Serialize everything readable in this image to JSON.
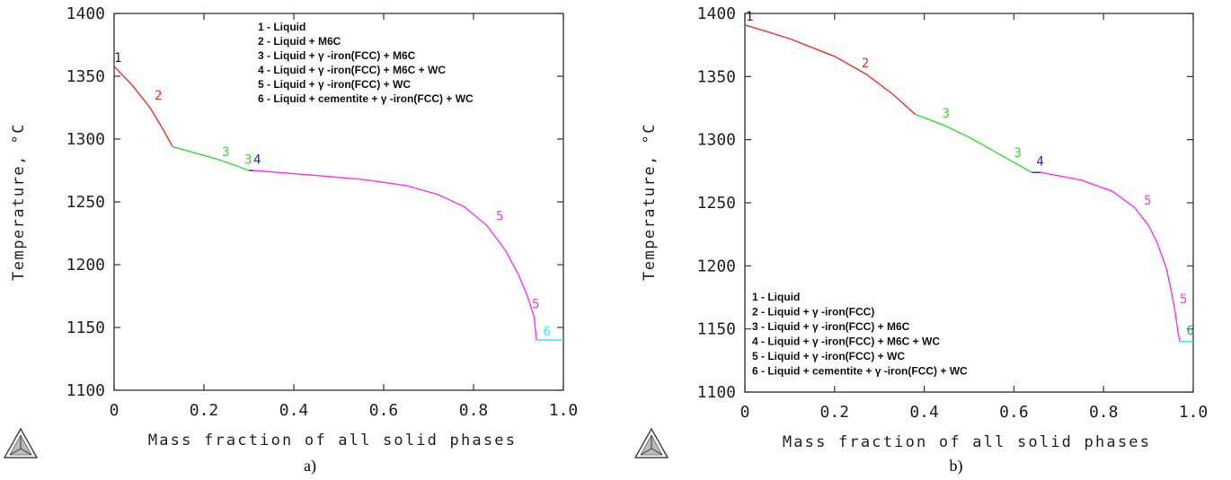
{
  "chart_data": [
    {
      "type": "line",
      "panel_label": "a)",
      "xlabel": "Mass fraction of all solid phases",
      "ylabel": "Temperature, °C",
      "xlim": [
        0,
        1.0
      ],
      "ylim": [
        1100,
        1400
      ],
      "x_ticks": [
        "0",
        "0.2",
        "0.4",
        "0.6",
        "0.8",
        "1.0"
      ],
      "y_ticks": [
        "1100",
        "1150",
        "1200",
        "1250",
        "1300",
        "1350",
        "1400"
      ],
      "grid": false,
      "legend_position": "top-right",
      "legend": [
        "1 - Liquid",
        "2 - Liquid + M6C",
        "3 - Liquid + γ -iron(FCC) + M6C",
        "4 - Liquid + γ -iron(FCC) + M6C + WC",
        "5 - Liquid + γ -iron(FCC) + WC",
        "6 - Liquid + cementite + γ -iron(FCC) + WC"
      ],
      "series": [
        {
          "name": "2",
          "color": "#ff2a2a",
          "x": [
            0.0,
            0.04,
            0.08,
            0.11,
            0.13
          ],
          "y": [
            1358,
            1343,
            1325,
            1307,
            1294
          ]
        },
        {
          "name": "3",
          "color": "#33dd33",
          "x": [
            0.13,
            0.18,
            0.23,
            0.27,
            0.3
          ],
          "y": [
            1294,
            1289,
            1284,
            1279,
            1275
          ]
        },
        {
          "name": "4",
          "color": "#2222cc",
          "x": [
            0.3,
            0.31
          ],
          "y": [
            1275,
            1275
          ]
        },
        {
          "name": "5",
          "color": "#ff33ff",
          "x": [
            0.31,
            0.45,
            0.55,
            0.65,
            0.72,
            0.78,
            0.83,
            0.87,
            0.9,
            0.92,
            0.935,
            0.94
          ],
          "y": [
            1275,
            1271,
            1268,
            1263,
            1256,
            1246,
            1231,
            1212,
            1192,
            1175,
            1158,
            1140
          ]
        },
        {
          "name": "6",
          "color": "#33eeee",
          "x": [
            0.94,
            1.0
          ],
          "y": [
            1140,
            1140
          ]
        }
      ],
      "segment_labels": [
        {
          "text": "1",
          "x": 0.0,
          "y": 1360,
          "color": "#222222"
        },
        {
          "text": "2",
          "x": 0.09,
          "y": 1330,
          "color": "#ff2a2a"
        },
        {
          "text": "3",
          "x": 0.24,
          "y": 1285,
          "color": "#33dd33"
        },
        {
          "text": "3",
          "x": 0.29,
          "y": 1279,
          "color": "#33dd33"
        },
        {
          "text": "4",
          "x": 0.31,
          "y": 1279,
          "color": "#2222cc"
        },
        {
          "text": "5",
          "x": 0.85,
          "y": 1234,
          "color": "#ff33ff"
        },
        {
          "text": "5",
          "x": 0.93,
          "y": 1164,
          "color": "#ff33ff"
        },
        {
          "text": "6",
          "x": 0.955,
          "y": 1142,
          "color": "#33eeee"
        }
      ]
    },
    {
      "type": "line",
      "panel_label": "b)",
      "xlabel": "Mass fraction of all solid phases",
      "ylabel": "Temperature, °C",
      "xlim": [
        0,
        1.0
      ],
      "ylim": [
        1100,
        1400
      ],
      "x_ticks": [
        "0",
        "0.2",
        "0.4",
        "0.6",
        "0.8",
        "1.0"
      ],
      "y_ticks": [
        "1100",
        "1150",
        "1200",
        "1250",
        "1300",
        "1350",
        "1400"
      ],
      "grid": false,
      "legend_position": "bottom-left",
      "legend": [
        "1 - Liquid",
        "2 - Liquid + γ -iron(FCC)",
        "3 - Liquid + γ -iron(FCC) + M6C",
        "4 - Liquid + γ -iron(FCC) + M6C + WC",
        "5 - Liquid + γ -iron(FCC) + WC",
        "6 - Liquid + cementite + γ -iron(FCC) + WC"
      ],
      "series": [
        {
          "name": "2",
          "color": "#ff2a2a",
          "x": [
            0.0,
            0.1,
            0.2,
            0.27,
            0.33,
            0.38
          ],
          "y": [
            1391,
            1380,
            1366,
            1352,
            1336,
            1320
          ]
        },
        {
          "name": "3",
          "color": "#33dd33",
          "x": [
            0.38,
            0.44,
            0.5,
            0.56,
            0.6,
            0.64
          ],
          "y": [
            1320,
            1312,
            1302,
            1290,
            1282,
            1274
          ]
        },
        {
          "name": "4",
          "color": "#2222cc",
          "x": [
            0.64,
            0.66
          ],
          "y": [
            1274,
            1274
          ]
        },
        {
          "name": "5",
          "color": "#ff33ff",
          "x": [
            0.66,
            0.75,
            0.82,
            0.87,
            0.9,
            0.92,
            0.94,
            0.95,
            0.96,
            0.965,
            0.97
          ],
          "y": [
            1274,
            1268,
            1259,
            1246,
            1232,
            1218,
            1198,
            1182,
            1163,
            1150,
            1140
          ]
        },
        {
          "name": "6",
          "color": "#33eeee",
          "x": [
            0.97,
            1.0
          ],
          "y": [
            1140,
            1140
          ]
        }
      ],
      "segment_labels": [
        {
          "text": "1",
          "x": 0.002,
          "y": 1393,
          "color": "#222222"
        },
        {
          "text": "2",
          "x": 0.26,
          "y": 1356,
          "color": "#ff2a2a"
        },
        {
          "text": "3",
          "x": 0.44,
          "y": 1316,
          "color": "#33dd33"
        },
        {
          "text": "3",
          "x": 0.6,
          "y": 1285,
          "color": "#33dd33"
        },
        {
          "text": "4",
          "x": 0.65,
          "y": 1278,
          "color": "#2222cc"
        },
        {
          "text": "5",
          "x": 0.89,
          "y": 1247,
          "color": "#ff33ff"
        },
        {
          "text": "5",
          "x": 0.97,
          "y": 1169,
          "color": "#ff33ff"
        },
        {
          "text": "6",
          "x": 0.985,
          "y": 1144,
          "color": "#33aa88"
        }
      ]
    }
  ]
}
